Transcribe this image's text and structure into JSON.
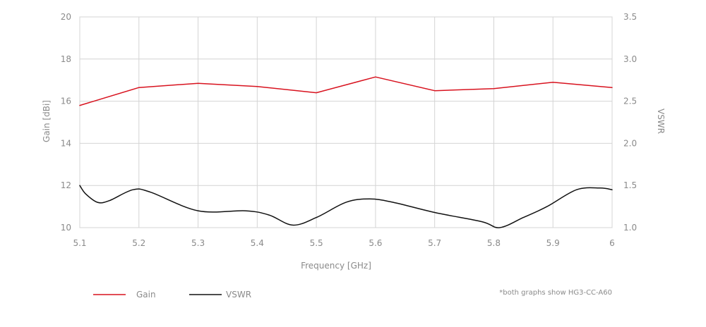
{
  "chart_data": {
    "type": "line",
    "xlabel": "Frequency [GHz]",
    "ylabel": "Gain [dBi]",
    "y2label": "VSWR",
    "xlim": [
      5.1,
      6.0
    ],
    "ylim": [
      10,
      20
    ],
    "y2lim": [
      1.0,
      3.5
    ],
    "x_ticks": [
      "5.1",
      "5.2",
      "5.3",
      "5.4",
      "5.5",
      "5.6",
      "5.7",
      "5.8",
      "5.9",
      "6"
    ],
    "y_ticks": [
      "20",
      "18",
      "16",
      "14",
      "12",
      "10"
    ],
    "y2_ticks": [
      "3.5",
      "3.0",
      "2.5",
      "2.0",
      "1.5",
      "1.0"
    ],
    "grid": true,
    "legend_position": "bottom-left",
    "series": [
      {
        "name": "Gain",
        "axis": "left",
        "color": "#d8121e",
        "x": [
          5.1,
          5.2,
          5.3,
          5.4,
          5.5,
          5.6,
          5.7,
          5.8,
          5.9,
          6.0
        ],
        "values": [
          15.8,
          16.65,
          16.85,
          16.7,
          16.4,
          17.15,
          16.5,
          16.6,
          16.9,
          16.65
        ]
      },
      {
        "name": "VSWR",
        "axis": "right",
        "color": "#111111",
        "x": [
          5.1,
          5.11,
          5.13,
          5.15,
          5.19,
          5.22,
          5.3,
          5.38,
          5.42,
          5.46,
          5.5,
          5.55,
          5.59,
          5.63,
          5.7,
          5.78,
          5.81,
          5.85,
          5.89,
          5.94,
          5.98,
          6.0
        ],
        "values": [
          1.5,
          1.4,
          1.3,
          1.32,
          1.45,
          1.42,
          1.2,
          1.2,
          1.15,
          1.03,
          1.12,
          1.3,
          1.34,
          1.3,
          1.18,
          1.07,
          1.0,
          1.12,
          1.25,
          1.45,
          1.47,
          1.45
        ]
      }
    ],
    "footnote": "*both graphs show HG3-CC-A60"
  }
}
